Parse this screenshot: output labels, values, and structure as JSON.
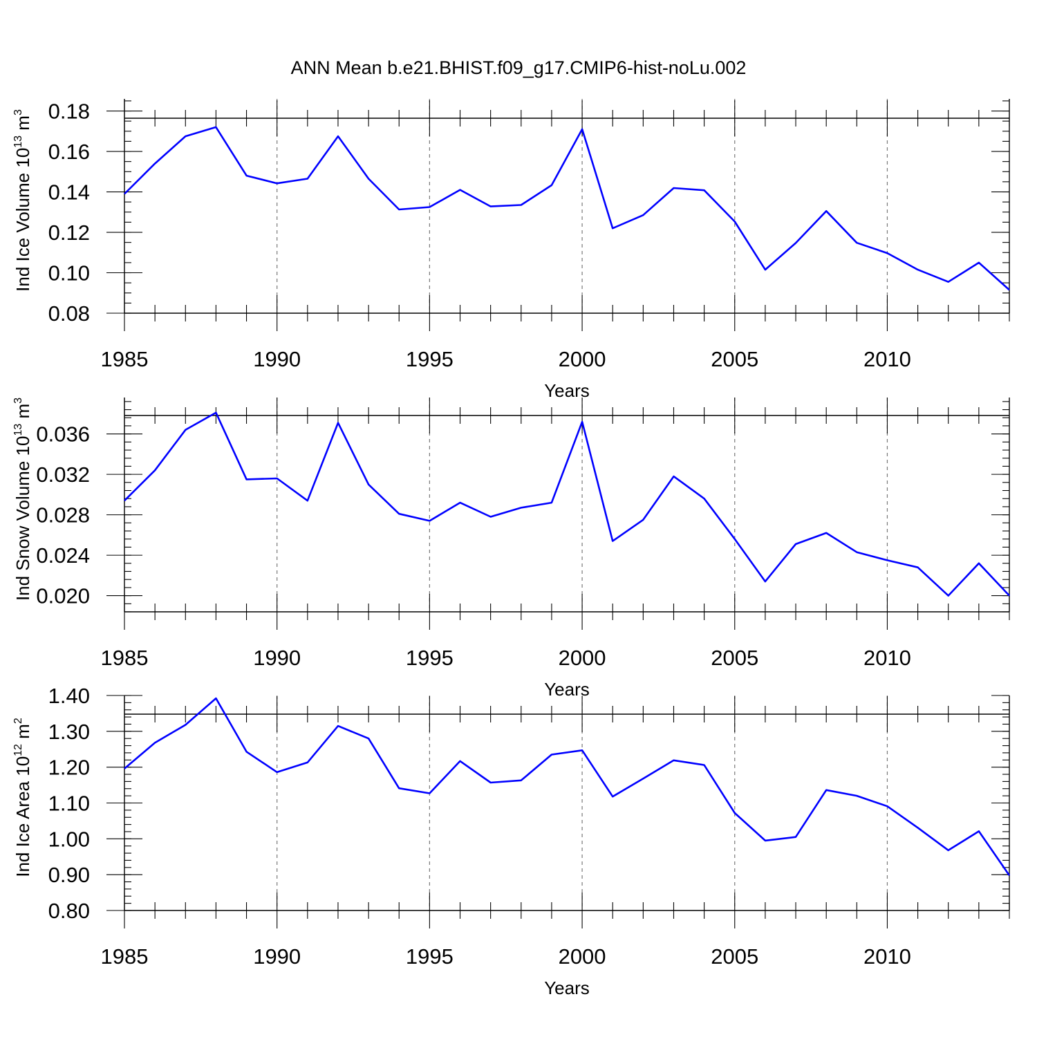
{
  "figure": {
    "title": "ANN Mean b.e21.BHIST.f09_g17.CMIP6-hist-noLu.002"
  },
  "chart_data": [
    {
      "type": "line",
      "ylabel": {
        "text": "Ind Ice Volume 10",
        "sup": "13",
        "unit": " m",
        "unit_sup": "3"
      },
      "xlabel": "Years",
      "xlim": [
        1985,
        2014
      ],
      "ylim": [
        0.08,
        0.186
      ],
      "xticks": [
        1985,
        1990,
        1995,
        2000,
        2005,
        2010
      ],
      "xtick_labels": [
        "1985",
        "1990",
        "1995",
        "2000",
        "2005",
        "2010"
      ],
      "yticks": [
        0.08,
        0.1,
        0.12,
        0.14,
        0.16,
        0.18
      ],
      "ytick_labels": [
        "0.08",
        "0.10",
        "0.12",
        "0.14",
        "0.16",
        "0.18"
      ],
      "yminor_step": 0.005,
      "grid": "dashed vertical at major x ticks",
      "color": "#0000ff",
      "x": [
        1985,
        1986,
        1987,
        1988,
        1989,
        1990,
        1991,
        1992,
        1993,
        1994,
        1995,
        1996,
        1997,
        1998,
        1999,
        2000,
        2001,
        2002,
        2003,
        2004,
        2005,
        2006,
        2007,
        2008,
        2009,
        2010,
        2011,
        2012,
        2013,
        2014
      ],
      "values": [
        0.139,
        0.154,
        0.1675,
        0.172,
        0.148,
        0.1442,
        0.1465,
        0.1675,
        0.1465,
        0.1313,
        0.1325,
        0.141,
        0.1328,
        0.1335,
        0.1433,
        0.171,
        0.122,
        0.1285,
        0.1419,
        0.1408,
        0.1253,
        0.1015,
        0.1147,
        0.1305,
        0.1148,
        0.1097,
        0.1015,
        0.0955,
        0.105,
        0.0915
      ]
    },
    {
      "type": "line",
      "ylabel": {
        "text": "Ind Snow Volume 10",
        "sup": "13",
        "unit": " m",
        "unit_sup": "3"
      },
      "xlabel": "Years",
      "xlim": [
        1985,
        2014
      ],
      "ylim": [
        0.0184,
        0.0396
      ],
      "xticks": [
        1985,
        1990,
        1995,
        2000,
        2005,
        2010
      ],
      "xtick_labels": [
        "1985",
        "1990",
        "1995",
        "2000",
        "2005",
        "2010"
      ],
      "yticks": [
        0.02,
        0.024,
        0.028,
        0.032,
        0.036
      ],
      "ytick_labels": [
        "0.020",
        "0.024",
        "0.028",
        "0.032",
        "0.036"
      ],
      "yminor_step": 0.0008,
      "grid": "dashed vertical at major x ticks",
      "color": "#0000ff",
      "x": [
        1985,
        1986,
        1987,
        1988,
        1989,
        1990,
        1991,
        1992,
        1993,
        1994,
        1995,
        1996,
        1997,
        1998,
        1999,
        2000,
        2001,
        2002,
        2003,
        2004,
        2005,
        2006,
        2007,
        2008,
        2009,
        2010,
        2011,
        2012,
        2013,
        2014
      ],
      "values": [
        0.0294,
        0.0324,
        0.0364,
        0.0381,
        0.0315,
        0.0316,
        0.0294,
        0.0371,
        0.031,
        0.0281,
        0.0274,
        0.0292,
        0.0278,
        0.0287,
        0.0292,
        0.0372,
        0.0254,
        0.0275,
        0.0318,
        0.0296,
        0.0256,
        0.0214,
        0.0251,
        0.0262,
        0.0243,
        0.0235,
        0.0228,
        0.02,
        0.0232,
        0.02
      ]
    },
    {
      "type": "line",
      "ylabel": {
        "text": "Ind Ice Area 10",
        "sup": "12",
        "unit": " m",
        "unit_sup": "2"
      },
      "xlabel": "Years",
      "xlim": [
        1985,
        2014
      ],
      "ylim": [
        0.8,
        1.4
      ],
      "xticks": [
        1985,
        1990,
        1995,
        2000,
        2005,
        2010
      ],
      "xtick_labels": [
        "1985",
        "1990",
        "1995",
        "2000",
        "2005",
        "2010"
      ],
      "yticks": [
        0.8,
        0.9,
        1.0,
        1.1,
        1.2,
        1.3,
        1.4
      ],
      "ytick_labels": [
        "0.80",
        "0.90",
        "1.00",
        "1.10",
        "1.20",
        "1.30",
        "1.40"
      ],
      "yminor_step": 0.02,
      "grid": "dashed vertical at major x ticks",
      "color": "#0000ff",
      "x": [
        1985,
        1986,
        1987,
        1988,
        1989,
        1990,
        1991,
        1992,
        1993,
        1994,
        1995,
        1996,
        1997,
        1998,
        1999,
        2000,
        2001,
        2002,
        2003,
        2004,
        2005,
        2006,
        2007,
        2008,
        2009,
        2010,
        2011,
        2012,
        2013,
        2014
      ],
      "values": [
        1.196,
        1.268,
        1.318,
        1.392,
        1.243,
        1.186,
        1.213,
        1.315,
        1.28,
        1.141,
        1.127,
        1.217,
        1.157,
        1.163,
        1.235,
        1.247,
        1.118,
        1.168,
        1.219,
        1.206,
        1.072,
        0.995,
        1.005,
        1.136,
        1.12,
        1.091,
        1.031,
        0.968,
        1.021,
        0.898
      ]
    }
  ]
}
